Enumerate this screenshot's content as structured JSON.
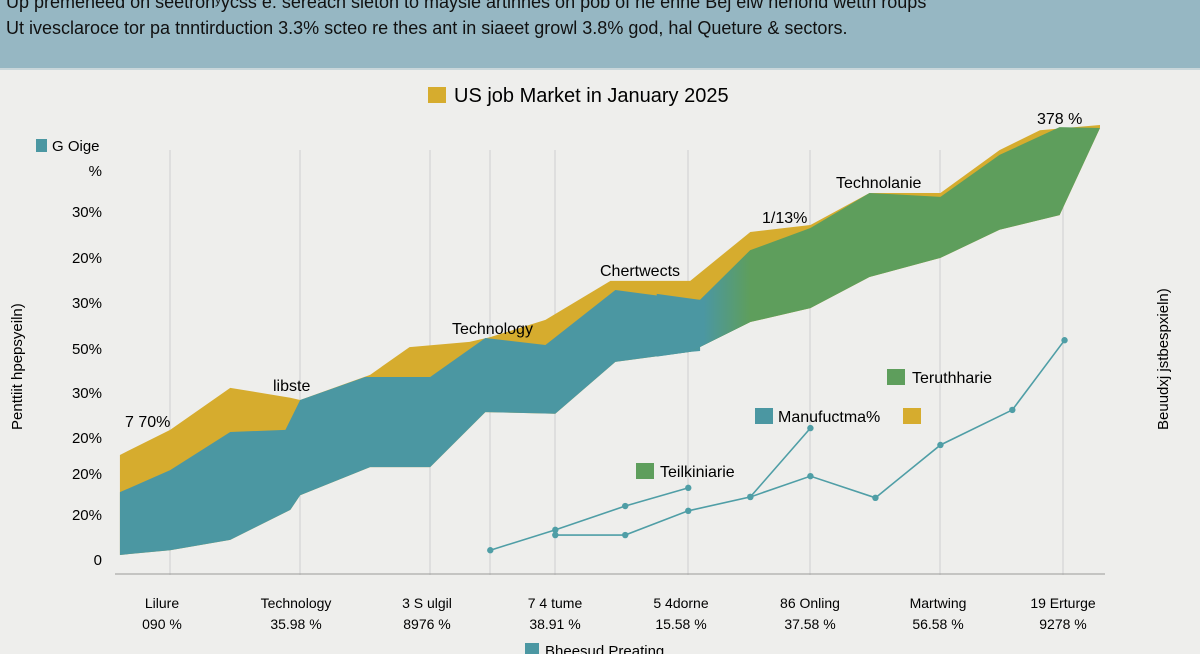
{
  "header": {
    "line1": "Up premeneed on seetronʸycss e:  sereach sleton to maysle artinnes on pob of he enne Beʃ elw herlond wetth roups",
    "line2": "Ut ivesclaroce tor pa tnntirduction 3.3% scteo re thes ant in siaeet growl 3.8% god, hal Queture & sectors."
  },
  "colors": {
    "header_bg": "#96b7c3",
    "yellow": "#d6ac2e",
    "teal": "#4b97a2",
    "green": "#5e9e5c",
    "line": "#4f9ea6"
  },
  "chart_data": {
    "type": "area",
    "title": "US job Market in January 2025",
    "ylabel_left": "Penttiit hpepsyeiln)",
    "ylabel_right": "Beuudxj jstbespxieln)",
    "y_ticks": [
      "%",
      "30%",
      "20%",
      "30%",
      "50%",
      "30%",
      "20%",
      "20%",
      "20%",
      "0"
    ],
    "xlim": [
      0,
      100
    ],
    "ylim": [
      0,
      100
    ],
    "grid": "vertical",
    "x_categories": [
      {
        "name": "Lilure",
        "value": "090 %"
      },
      {
        "name": "Technology",
        "value": "35.98 %"
      },
      {
        "name": "3 S ulgil",
        "value": "8976 %"
      },
      {
        "name": "7 4 tume",
        "value": "38.91 %"
      },
      {
        "name": "5 4dorne",
        "value": "15.58 %"
      },
      {
        "name": "86 Onling",
        "value": "37.58 %"
      },
      {
        "name": "Martwing",
        "value": "56.58 %"
      },
      {
        "name": "19 Erturge",
        "value": "9278 %"
      }
    ],
    "series": [
      {
        "color": "yellow",
        "top": [
          [
            0.5,
            23.8
          ],
          [
            5.6,
            29.6
          ],
          [
            11.7,
            39.3
          ],
          [
            17.8,
            37
          ],
          [
            18.8,
            36.5
          ],
          [
            25.9,
            42.3
          ],
          [
            29.9,
            48.7
          ],
          [
            36,
            49.9
          ],
          [
            38.1,
            51
          ],
          [
            43.7,
            55
          ],
          [
            50.3,
            64
          ],
          [
            58.4,
            64
          ],
          [
            64.5,
            75.3
          ],
          [
            70.6,
            76.9
          ],
          [
            76.6,
            84.3
          ],
          [
            83.8,
            84.3
          ],
          [
            89.8,
            94.2
          ],
          [
            93.9,
            98.8
          ],
          [
            100,
            100
          ]
        ]
      },
      {
        "color": "teal",
        "top": [
          [
            0.5,
            15.2
          ],
          [
            5.6,
            20.3
          ],
          [
            11.7,
            29.1
          ],
          [
            17.3,
            29.6
          ],
          [
            18.8,
            36.5
          ],
          [
            25.4,
            41.8
          ],
          [
            32,
            41.8
          ],
          [
            37.6,
            50.8
          ],
          [
            43.7,
            49.2
          ],
          [
            50.8,
            61.9
          ],
          [
            58.4,
            59.6
          ]
        ]
      },
      {
        "color": "green",
        "top": [
          [
            59.4,
            59.6
          ],
          [
            64.5,
            71.1
          ],
          [
            70.6,
            76.2
          ],
          [
            76.6,
            84.3
          ],
          [
            83.8,
            83.4
          ],
          [
            89.8,
            93.1
          ],
          [
            95.9,
            99.5
          ],
          [
            100,
            99.3
          ]
        ]
      }
    ],
    "lower_boundary": [
      [
        0.5,
        0.7
      ],
      [
        5.6,
        1.8
      ],
      [
        11.7,
        4.2
      ],
      [
        17.8,
        11.1
      ],
      [
        18.8,
        14.5
      ],
      [
        25.9,
        21
      ],
      [
        32,
        21
      ],
      [
        37.6,
        33.7
      ],
      [
        44.7,
        33.3
      ],
      [
        50.8,
        45.3
      ],
      [
        58.4,
        47.6
      ],
      [
        64.5,
        54.5
      ],
      [
        70.6,
        57.7
      ],
      [
        76.6,
        64.9
      ],
      [
        83.8,
        69.3
      ],
      [
        89.8,
        75.8
      ],
      [
        95.9,
        79.2
      ],
      [
        100,
        99.3
      ]
    ],
    "lines": [
      [
        [
          38.1,
          1.8
        ],
        [
          44.7,
          6.5
        ],
        [
          51.8,
          12
        ],
        [
          58.2,
          16.2
        ]
      ],
      [
        [
          44.7,
          5.3
        ],
        [
          51.8,
          5.3
        ],
        [
          58.2,
          10.9
        ],
        [
          64.5,
          14.1
        ],
        [
          70.6,
          30
        ]
      ],
      [
        [
          64.5,
          14.1
        ],
        [
          70.6,
          18.9
        ],
        [
          77.2,
          13.9
        ],
        [
          83.8,
          26.1
        ],
        [
          91.1,
          34.2
        ],
        [
          96.4,
          50.3
        ]
      ]
    ],
    "annotations": [
      "Technolanie",
      "1/13%",
      "Chertwects",
      "Technology",
      "libste",
      "7 70%",
      "378 %"
    ],
    "legend": [
      {
        "label": "G Oige",
        "color": "teal"
      },
      {
        "label": "Teruthharie",
        "color": "green"
      },
      {
        "label": "Manufuctma%",
        "color": "teal",
        "color2": "yellow"
      },
      {
        "label": "Teilkiniarie",
        "color": "green"
      },
      {
        "label": "Bheesud Preating",
        "color": "teal"
      }
    ]
  }
}
